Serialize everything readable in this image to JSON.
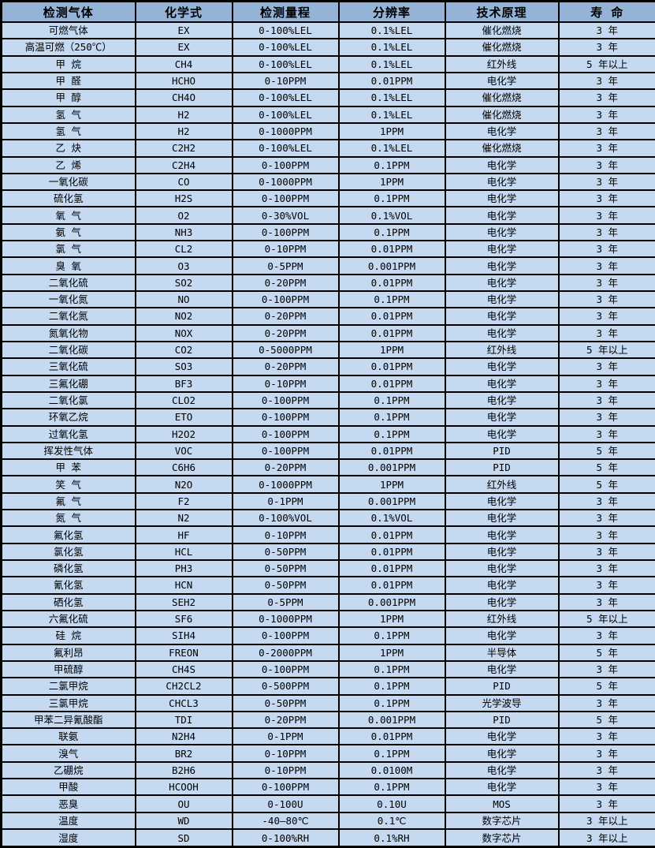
{
  "table": {
    "title_semantic": "gas-detector-specification-table",
    "colors": {
      "header_bg": "#95B3D7",
      "row_bg": "#C5D9F1",
      "border": "#000000",
      "text": "#000000"
    },
    "columns": [
      {
        "key": "gas",
        "label": "检测气体"
      },
      {
        "key": "formula",
        "label": "化学式"
      },
      {
        "key": "range",
        "label": "检测量程"
      },
      {
        "key": "resolution",
        "label": "分辨率"
      },
      {
        "key": "principle",
        "label": "技术原理"
      },
      {
        "key": "lifespan",
        "label": "寿 命"
      }
    ],
    "rows": [
      [
        "可燃气体",
        "EX",
        "0-100%LEL",
        "0.1%LEL",
        "催化燃烧",
        "3 年"
      ],
      [
        "高温可燃（250℃）",
        "EX",
        "0-100%LEL",
        "0.1%LEL",
        "催化燃烧",
        "3 年"
      ],
      [
        "甲 烷",
        "CH4",
        "0-100%LEL",
        "0.1%LEL",
        "红外线",
        "5 年以上"
      ],
      [
        "甲 醛",
        "HCHO",
        "0-10PPM",
        "0.01PPM",
        "电化学",
        "3 年"
      ],
      [
        "甲 醇",
        "CH4O",
        "0-100%LEL",
        "0.1%LEL",
        "催化燃烧",
        "3 年"
      ],
      [
        "氢 气",
        "H2",
        "0-100%LEL",
        "0.1%LEL",
        "催化燃烧",
        "3 年"
      ],
      [
        "氢 气",
        "H2",
        "0-1000PPM",
        "1PPM",
        "电化学",
        "3 年"
      ],
      [
        "乙 炔",
        "C2H2",
        "0-100%LEL",
        "0.1%LEL",
        "催化燃烧",
        "3 年"
      ],
      [
        "乙 烯",
        "C2H4",
        "0-100PPM",
        "0.1PPM",
        "电化学",
        "3 年"
      ],
      [
        "一氧化碳",
        "CO",
        "0-1000PPM",
        "1PPM",
        "电化学",
        "3 年"
      ],
      [
        "硫化氢",
        "H2S",
        "0-100PPM",
        "0.1PPM",
        "电化学",
        "3 年"
      ],
      [
        "氧 气",
        "O2",
        "0-30%VOL",
        "0.1%VOL",
        "电化学",
        "3 年"
      ],
      [
        "氨 气",
        "NH3",
        "0-100PPM",
        "0.1PPM",
        "电化学",
        "3 年"
      ],
      [
        "氯 气",
        "CL2",
        "0-10PPM",
        "0.01PPM",
        "电化学",
        "3 年"
      ],
      [
        "臭 氧",
        "O3",
        "0-5PPM",
        "0.001PPM",
        "电化学",
        "3 年"
      ],
      [
        "二氧化硫",
        "SO2",
        "0-20PPM",
        "0.01PPM",
        "电化学",
        "3 年"
      ],
      [
        "一氧化氮",
        "NO",
        "0-100PPM",
        "0.1PPM",
        "电化学",
        "3 年"
      ],
      [
        "二氧化氮",
        "NO2",
        "0-20PPM",
        "0.01PPM",
        "电化学",
        "3 年"
      ],
      [
        "氮氧化物",
        "NOX",
        "0-20PPM",
        "0.01PPM",
        "电化学",
        "3 年"
      ],
      [
        "二氧化碳",
        "CO2",
        "0-5000PPM",
        "1PPM",
        "红外线",
        "5 年以上"
      ],
      [
        "三氧化硫",
        "SO3",
        "0-20PPM",
        "0.01PPM",
        "电化学",
        "3 年"
      ],
      [
        "三氟化硼",
        "BF3",
        "0-10PPM",
        "0.01PPM",
        "电化学",
        "3 年"
      ],
      [
        "二氧化氯",
        "CLO2",
        "0-100PPM",
        "0.1PPM",
        "电化学",
        "3 年"
      ],
      [
        "环氧乙烷",
        "ETO",
        "0-100PPM",
        "0.1PPM",
        "电化学",
        "3 年"
      ],
      [
        "过氧化氢",
        "H2O2",
        "0-100PPM",
        "0.1PPM",
        "电化学",
        "3 年"
      ],
      [
        "挥发性气体",
        "VOC",
        "0-100PPM",
        "0.01PPM",
        "PID",
        "5 年"
      ],
      [
        "甲 苯",
        "C6H6",
        "0-20PPM",
        "0.001PPM",
        "PID",
        "5 年"
      ],
      [
        "笑 气",
        "N2O",
        "0-1000PPM",
        "1PPM",
        "红外线",
        "5 年"
      ],
      [
        "氟 气",
        "F2",
        "0-1PPM",
        "0.001PPM",
        "电化学",
        "3 年"
      ],
      [
        "氮 气",
        "N2",
        "0-100%VOL",
        "0.1%VOL",
        "电化学",
        "3 年"
      ],
      [
        "氟化氢",
        "HF",
        "0-10PPM",
        "0.01PPM",
        "电化学",
        "3 年"
      ],
      [
        "氯化氢",
        "HCL",
        "0-50PPM",
        "0.01PPM",
        "电化学",
        "3 年"
      ],
      [
        "磷化氢",
        "PH3",
        "0-50PPM",
        "0.01PPM",
        "电化学",
        "3 年"
      ],
      [
        "氰化氢",
        "HCN",
        "0-50PPM",
        "0.01PPM",
        "电化学",
        "3 年"
      ],
      [
        "硒化氢",
        "SEH2",
        "0-5PPM",
        "0.001PPM",
        "电化学",
        "3 年"
      ],
      [
        "六氟化硫",
        "SF6",
        "0-1000PPM",
        "1PPM",
        "红外线",
        "5 年以上"
      ],
      [
        "硅 烷",
        "SIH4",
        "0-100PPM",
        "0.1PPM",
        "电化学",
        "3 年"
      ],
      [
        "氟利昂",
        "FREON",
        "0-2000PPM",
        "1PPM",
        "半导体",
        "5 年"
      ],
      [
        "甲硫醇",
        "CH4S",
        "0-100PPM",
        "0.1PPM",
        "电化学",
        "3 年"
      ],
      [
        "二氯甲烷",
        "CH2CL2",
        "0-500PPM",
        "0.1PPM",
        "PID",
        "5 年"
      ],
      [
        "三氯甲烷",
        "CHCL3",
        "0-50PPM",
        "0.1PPM",
        "光学波导",
        "3 年"
      ],
      [
        "甲苯二异氰酸酯",
        "TDI",
        "0-20PPM",
        "0.001PPM",
        "PID",
        "5 年"
      ],
      [
        "联氨",
        "N2H4",
        "0-1PPM",
        "0.01PPM",
        "电化学",
        "3 年"
      ],
      [
        "溴气",
        "BR2",
        "0-10PPM",
        "0.1PPM",
        "电化学",
        "3 年"
      ],
      [
        "乙硼烷",
        "B2H6",
        "0-10PPM",
        "0.0100M",
        "电化学",
        "3 年"
      ],
      [
        "甲酸",
        "HCOOH",
        "0-100PPM",
        "0.1PPM",
        "电化学",
        "3 年"
      ],
      [
        "恶臭",
        "OU",
        "0-100U",
        "0.10U",
        "MOS",
        "3 年"
      ],
      [
        "温度",
        "WD",
        "-40—80℃",
        "0.1℃",
        "数字芯片",
        "3 年以上"
      ],
      [
        "湿度",
        "SD",
        "0-100%RH",
        "0.1%RH",
        "数字芯片",
        "3 年以上"
      ]
    ]
  }
}
